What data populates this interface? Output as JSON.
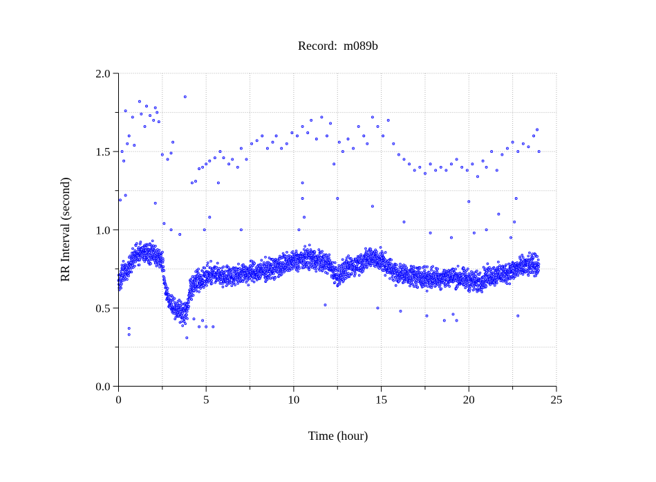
{
  "chart_data": {
    "type": "scatter",
    "title": "Record:  m089b",
    "xlabel": "Time (hour)",
    "ylabel": "RR Interval (second)",
    "xlim": [
      0,
      25
    ],
    "ylim": [
      0,
      2.0
    ],
    "xticks": [
      "0",
      "5",
      "10",
      "15",
      "20",
      "25"
    ],
    "xtick_values": [
      0,
      5,
      10,
      15,
      20,
      25
    ],
    "yticks": [
      "0.0",
      "0.5",
      "1.0",
      "1.5",
      "2.0"
    ],
    "ytick_values": [
      0,
      0.5,
      1.0,
      1.5,
      2.0
    ],
    "grid": true,
    "series_color": "#0000ff",
    "main_trend": {
      "hour": [
        0.0,
        0.3,
        0.6,
        1.0,
        1.5,
        2.0,
        2.5,
        2.7,
        3.0,
        3.5,
        3.9,
        4.1,
        4.5,
        5.0,
        5.5,
        6.0,
        7.0,
        8.0,
        9.0,
        10.0,
        11.0,
        12.0,
        12.5,
        13.0,
        14.0,
        14.5,
        15.0,
        15.5,
        16.0,
        17.0,
        18.0,
        19.0,
        20.0,
        20.5,
        21.0,
        22.0,
        23.0,
        24.0
      ],
      "rr_mean": [
        0.65,
        0.72,
        0.75,
        0.85,
        0.85,
        0.85,
        0.8,
        0.6,
        0.53,
        0.48,
        0.47,
        0.62,
        0.67,
        0.7,
        0.72,
        0.7,
        0.72,
        0.73,
        0.76,
        0.8,
        0.82,
        0.78,
        0.7,
        0.75,
        0.8,
        0.83,
        0.8,
        0.75,
        0.72,
        0.7,
        0.69,
        0.7,
        0.68,
        0.66,
        0.7,
        0.72,
        0.76,
        0.78
      ],
      "rr_spread": 0.06
    },
    "outliers": [
      [
        0.2,
        1.5
      ],
      [
        0.3,
        1.44
      ],
      [
        0.4,
        1.76
      ],
      [
        0.5,
        1.55
      ],
      [
        0.6,
        1.6
      ],
      [
        0.8,
        1.72
      ],
      [
        0.9,
        1.54
      ],
      [
        1.2,
        1.82
      ],
      [
        1.3,
        1.74
      ],
      [
        1.5,
        1.66
      ],
      [
        1.6,
        1.79
      ],
      [
        1.8,
        1.73
      ],
      [
        2.0,
        1.7
      ],
      [
        2.1,
        1.78
      ],
      [
        2.2,
        1.75
      ],
      [
        2.3,
        1.69
      ],
      [
        2.5,
        1.48
      ],
      [
        2.8,
        1.45
      ],
      [
        3.0,
        1.49
      ],
      [
        3.1,
        1.56
      ],
      [
        3.8,
        1.85
      ],
      [
        4.2,
        1.3
      ],
      [
        4.4,
        1.31
      ],
      [
        4.6,
        1.39
      ],
      [
        4.8,
        1.4
      ],
      [
        5.0,
        1.42
      ],
      [
        5.2,
        1.44
      ],
      [
        5.5,
        1.46
      ],
      [
        5.7,
        1.3
      ],
      [
        5.8,
        1.5
      ],
      [
        6.0,
        1.46
      ],
      [
        6.3,
        1.42
      ],
      [
        6.5,
        1.45
      ],
      [
        6.8,
        1.4
      ],
      [
        7.0,
        1.52
      ],
      [
        7.3,
        1.45
      ],
      [
        7.6,
        1.55
      ],
      [
        7.9,
        1.57
      ],
      [
        8.2,
        1.6
      ],
      [
        8.5,
        1.52
      ],
      [
        8.8,
        1.56
      ],
      [
        9.0,
        1.6
      ],
      [
        9.3,
        1.52
      ],
      [
        9.6,
        1.55
      ],
      [
        9.9,
        1.62
      ],
      [
        10.2,
        1.6
      ],
      [
        10.5,
        1.66
      ],
      [
        10.8,
        1.62
      ],
      [
        11.0,
        1.7
      ],
      [
        11.3,
        1.58
      ],
      [
        11.6,
        1.72
      ],
      [
        11.9,
        1.6
      ],
      [
        12.1,
        1.68
      ],
      [
        12.3,
        1.42
      ],
      [
        12.6,
        1.56
      ],
      [
        12.8,
        1.5
      ],
      [
        13.1,
        1.58
      ],
      [
        13.4,
        1.52
      ],
      [
        13.7,
        1.66
      ],
      [
        14.0,
        1.6
      ],
      [
        14.2,
        1.55
      ],
      [
        14.5,
        1.72
      ],
      [
        14.8,
        1.66
      ],
      [
        15.1,
        1.6
      ],
      [
        15.4,
        1.7
      ],
      [
        15.7,
        1.55
      ],
      [
        16.0,
        1.48
      ],
      [
        16.3,
        1.45
      ],
      [
        16.6,
        1.42
      ],
      [
        16.9,
        1.38
      ],
      [
        17.2,
        1.4
      ],
      [
        17.5,
        1.36
      ],
      [
        17.8,
        1.42
      ],
      [
        18.1,
        1.38
      ],
      [
        18.4,
        1.4
      ],
      [
        18.7,
        1.38
      ],
      [
        19.0,
        1.42
      ],
      [
        19.3,
        1.45
      ],
      [
        19.6,
        1.4
      ],
      [
        19.9,
        1.38
      ],
      [
        20.2,
        1.42
      ],
      [
        20.5,
        1.34
      ],
      [
        20.8,
        1.44
      ],
      [
        21.0,
        1.4
      ],
      [
        21.3,
        1.5
      ],
      [
        21.6,
        1.38
      ],
      [
        21.9,
        1.48
      ],
      [
        22.2,
        1.52
      ],
      [
        22.5,
        1.56
      ],
      [
        22.8,
        1.5
      ],
      [
        23.1,
        1.55
      ],
      [
        23.4,
        1.53
      ],
      [
        23.7,
        1.6
      ],
      [
        23.9,
        1.64
      ],
      [
        24.0,
        1.5
      ],
      [
        0.1,
        1.19
      ],
      [
        0.4,
        1.22
      ],
      [
        0.6,
        0.37
      ],
      [
        0.6,
        0.33
      ],
      [
        2.1,
        1.17
      ],
      [
        2.6,
        1.04
      ],
      [
        3.0,
        1.0
      ],
      [
        3.5,
        0.97
      ],
      [
        3.9,
        0.31
      ],
      [
        4.3,
        0.43
      ],
      [
        4.6,
        0.38
      ],
      [
        4.8,
        0.42
      ],
      [
        5.0,
        0.38
      ],
      [
        5.4,
        0.38
      ],
      [
        4.9,
        1.0
      ],
      [
        5.2,
        1.08
      ],
      [
        7.0,
        1.0
      ],
      [
        10.3,
        1.0
      ],
      [
        10.5,
        1.2
      ],
      [
        10.6,
        1.08
      ],
      [
        10.5,
        1.3
      ],
      [
        11.8,
        0.52
      ],
      [
        12.5,
        1.2
      ],
      [
        14.5,
        1.15
      ],
      [
        14.8,
        0.5
      ],
      [
        16.1,
        0.48
      ],
      [
        16.3,
        1.05
      ],
      [
        17.6,
        0.45
      ],
      [
        17.8,
        0.98
      ],
      [
        18.6,
        0.42
      ],
      [
        19.1,
        0.46
      ],
      [
        19.3,
        0.42
      ],
      [
        19.0,
        0.95
      ],
      [
        20.0,
        1.18
      ],
      [
        20.3,
        0.98
      ],
      [
        21.0,
        1.0
      ],
      [
        21.7,
        1.1
      ],
      [
        22.4,
        0.95
      ],
      [
        22.7,
        1.2
      ],
      [
        22.8,
        0.45
      ],
      [
        22.6,
        1.05
      ]
    ]
  }
}
